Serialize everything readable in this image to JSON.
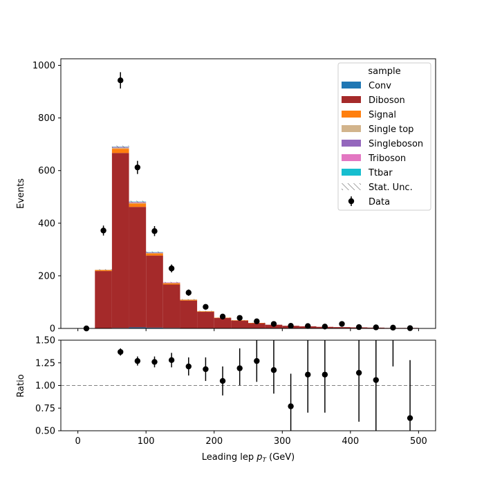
{
  "chart_data": [
    {
      "type": "bar",
      "stacked": true,
      "ylabel": "Events",
      "xlim": [
        -25,
        525
      ],
      "ylim": [
        0,
        1025
      ],
      "yticks": [
        0,
        200,
        400,
        600,
        800,
        1000
      ],
      "bin_edges": [
        0,
        25,
        50,
        75,
        100,
        125,
        150,
        175,
        200,
        225,
        250,
        275,
        300,
        325,
        350,
        375,
        400,
        425,
        450,
        475,
        500
      ],
      "series": [
        {
          "name": "Conv",
          "color": "#1f77b4",
          "values": [
            0,
            0,
            2,
            4,
            3,
            2,
            1,
            1,
            0,
            0,
            0,
            0,
            0,
            0,
            0,
            0,
            0,
            0,
            0,
            0
          ]
        },
        {
          "name": "Diboson",
          "color": "#a52a2a",
          "values": [
            0,
            218,
            665,
            458,
            274,
            165,
            105,
            62,
            40,
            30,
            20,
            14,
            10,
            8,
            6,
            5,
            4,
            3,
            2,
            2
          ]
        },
        {
          "name": "Signal",
          "color": "#ff7f0e",
          "values": [
            0,
            4,
            16,
            13,
            8,
            5,
            3,
            2,
            1,
            1,
            1,
            0,
            0,
            0,
            0,
            0,
            0,
            0,
            0,
            0
          ]
        },
        {
          "name": "Single top",
          "color": "#d2b48c",
          "values": [
            0,
            1,
            4,
            3,
            2,
            1,
            1,
            1,
            0,
            0,
            0,
            0,
            0,
            0,
            0,
            0,
            0,
            0,
            0,
            0
          ]
        },
        {
          "name": "Singleboson",
          "color": "#9467bd",
          "values": [
            0,
            0,
            1,
            1,
            1,
            1,
            0,
            0,
            0,
            0,
            0,
            0,
            0,
            0,
            0,
            0,
            0,
            0,
            0,
            0
          ]
        },
        {
          "name": "Triboson",
          "color": "#e377c2",
          "values": [
            0,
            0,
            2,
            2,
            1,
            1,
            0,
            0,
            0,
            0,
            0,
            0,
            0,
            0,
            0,
            0,
            0,
            0,
            0,
            0
          ]
        },
        {
          "name": "Ttbar",
          "color": "#17becf",
          "values": [
            0,
            0,
            1,
            1,
            1,
            0,
            0,
            0,
            0,
            0,
            0,
            0,
            0,
            0,
            0,
            0,
            0,
            0,
            0,
            0
          ]
        }
      ],
      "stat_unc_label": "Stat. Unc.",
      "data": {
        "name": "Data",
        "x": [
          12.5,
          37.5,
          62.5,
          87.5,
          112.5,
          137.5,
          162.5,
          187.5,
          212.5,
          237.5,
          262.5,
          287.5,
          312.5,
          337.5,
          362.5,
          387.5,
          412.5,
          437.5,
          462.5,
          487.5
        ],
        "y": [
          0,
          372,
          943,
          612,
          370,
          228,
          136,
          82,
          45,
          40,
          27,
          17,
          10,
          9,
          7,
          17,
          5,
          4,
          3,
          1
        ],
        "yerr": [
          0,
          19,
          31,
          25,
          19,
          15,
          12,
          9,
          7,
          6,
          5,
          4,
          3,
          3,
          3,
          4,
          2,
          2,
          2,
          1
        ]
      },
      "legend": {
        "title": "sample",
        "placement": "top-right"
      }
    },
    {
      "type": "scatter",
      "xlabel": "Leading lep $p_T$ (GeV)",
      "ylabel": "Ratio",
      "xlim": [
        -25,
        525
      ],
      "ylim": [
        0.5,
        1.5
      ],
      "xticks": [
        0,
        100,
        200,
        300,
        400,
        500
      ],
      "yticks": [
        "0.50",
        "0.75",
        "1.00",
        "1.25",
        "1.50"
      ],
      "reference_line": 1.0,
      "x": [
        62.5,
        87.5,
        112.5,
        137.5,
        162.5,
        187.5,
        212.5,
        237.5,
        262.5,
        287.5,
        312.5,
        337.5,
        362.5,
        412.5,
        437.5,
        462.5,
        487.5
      ],
      "y": [
        1.37,
        1.27,
        1.26,
        1.28,
        1.21,
        1.18,
        1.05,
        1.19,
        1.27,
        1.17,
        0.77,
        1.12,
        1.12,
        1.14,
        1.06,
        null,
        0.64
      ],
      "yerr_low": [
        0.04,
        0.05,
        0.06,
        0.08,
        0.1,
        0.13,
        0.16,
        0.19,
        0.23,
        0.26,
        0.36,
        0.42,
        0.42,
        0.54,
        0.66,
        null,
        0.64
      ],
      "yerr_high": [
        0.04,
        0.05,
        0.06,
        0.08,
        0.1,
        0.13,
        0.16,
        0.22,
        0.26,
        0.33,
        0.36,
        0.45,
        0.45,
        0.54,
        0.66,
        null,
        0.64
      ],
      "offscale_errorbar": {
        "x": 462.5,
        "low": 1.21
      }
    }
  ]
}
